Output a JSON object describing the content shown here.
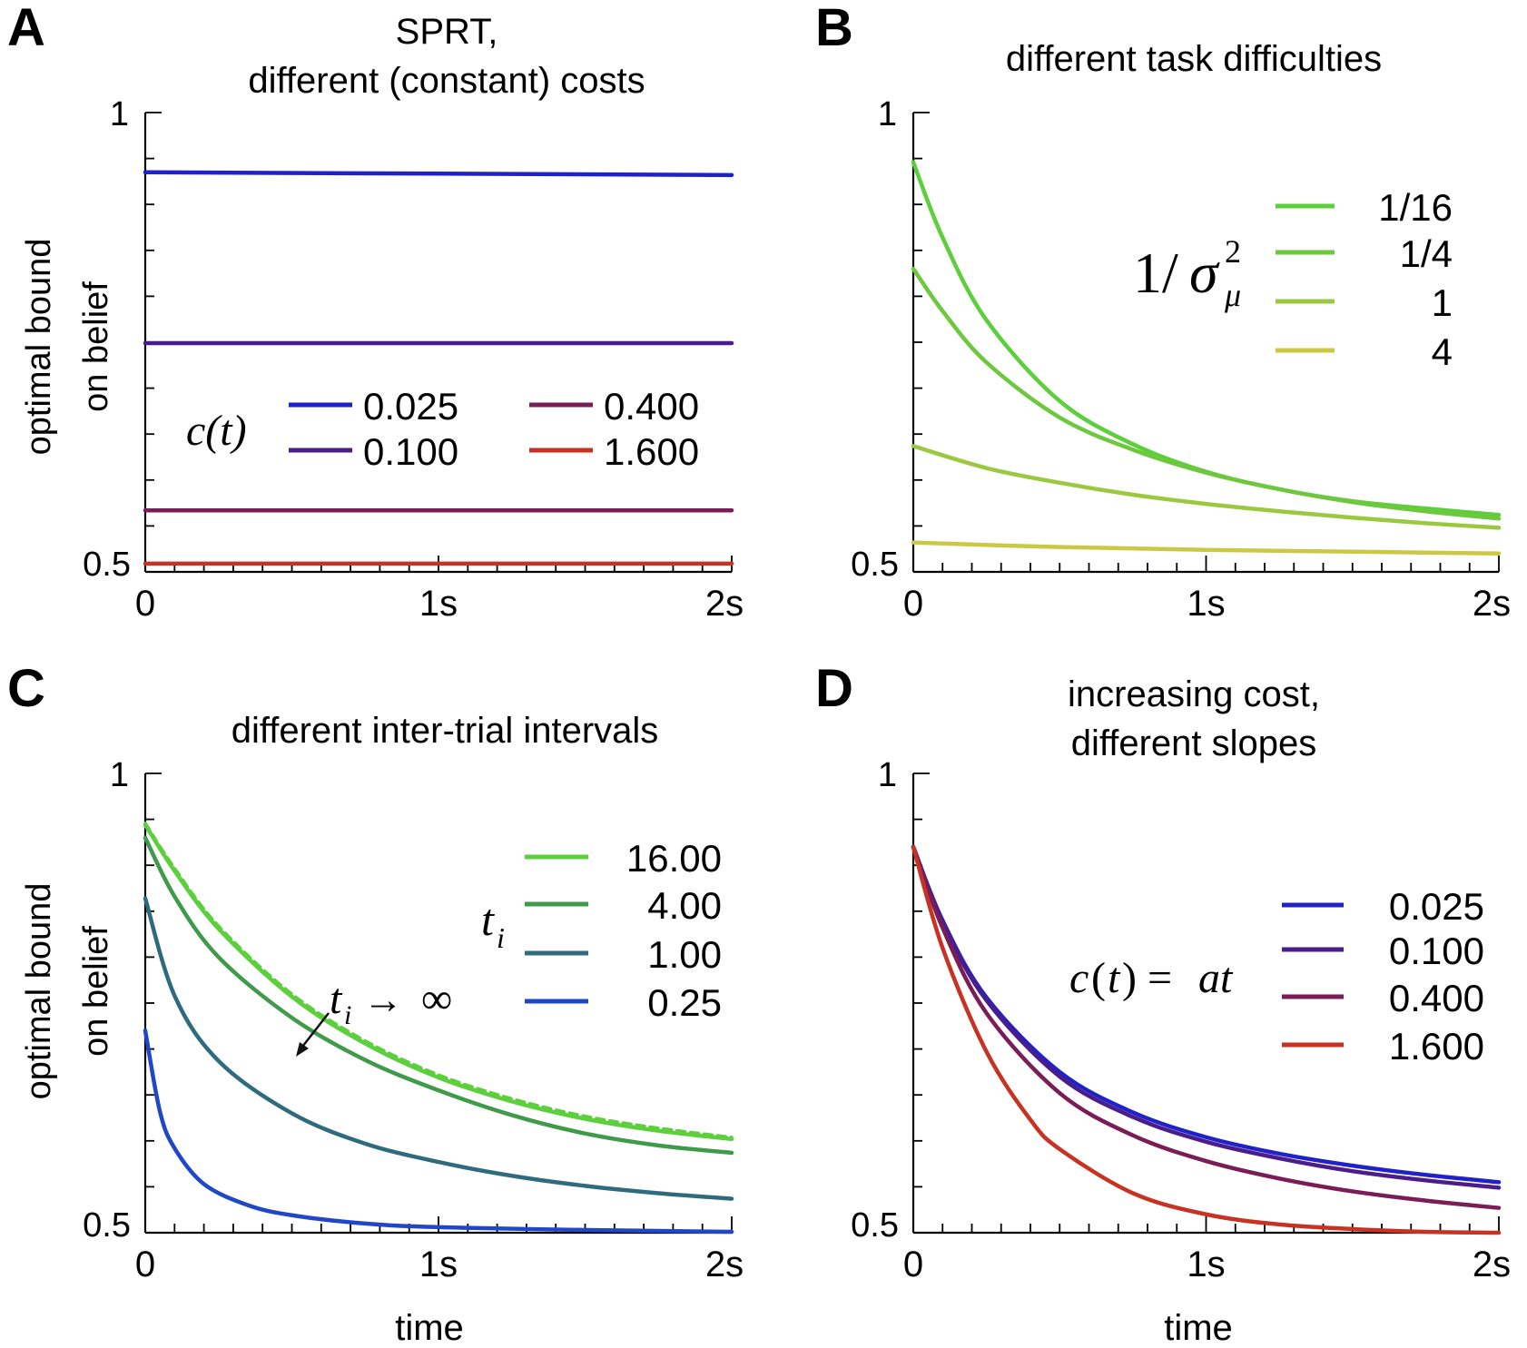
{
  "shared": {
    "ylabel_line1": "optimal bound",
    "ylabel_line2": "on belief",
    "xlabel": "time",
    "xticks": [
      "0",
      "1s",
      "2s"
    ],
    "yticks": [
      "1",
      "0.5"
    ]
  },
  "chart_data": [
    {
      "panel": "A",
      "type": "line",
      "title": [
        "SPRT,",
        "different (constant) costs"
      ],
      "legend_title": "c(t)",
      "xlim": [
        0,
        2
      ],
      "ylim": [
        0.5,
        1
      ],
      "xticks": [
        "0",
        "1s",
        "2s"
      ],
      "yticks": [
        "1",
        "0.5"
      ],
      "ylabel": "optimal bound on belief",
      "xlabel": "",
      "series": [
        {
          "name": "0.025",
          "color": "#1f22c8",
          "x": [
            0,
            2
          ],
          "y": [
            0.935,
            0.932
          ]
        },
        {
          "name": "0.100",
          "color": "#4a1c8c",
          "x": [
            0,
            2
          ],
          "y": [
            0.749,
            0.749
          ]
        },
        {
          "name": "0.400",
          "color": "#7a1c55",
          "x": [
            0,
            2
          ],
          "y": [
            0.567,
            0.567
          ]
        },
        {
          "name": "1.600",
          "color": "#c83223",
          "x": [
            0,
            2
          ],
          "y": [
            0.509,
            0.509
          ]
        }
      ]
    },
    {
      "panel": "B",
      "type": "line",
      "title": [
        "different task difficulties"
      ],
      "legend_title": "1/σ_μ^2",
      "xlim": [
        0,
        2
      ],
      "ylim": [
        0.5,
        1
      ],
      "xticks": [
        "0",
        "1s",
        "2s"
      ],
      "yticks": [
        "1",
        "0.5"
      ],
      "ylabel": "",
      "xlabel": "",
      "series": [
        {
          "name": "1/16",
          "color": "#5ccf3c",
          "x": [
            0,
            0.1,
            0.25,
            0.5,
            0.75,
            1.0,
            1.25,
            1.5,
            1.75,
            2.0
          ],
          "y": [
            0.946,
            0.864,
            0.774,
            0.686,
            0.639,
            0.609,
            0.59,
            0.577,
            0.569,
            0.562
          ]
        },
        {
          "name": "1/4",
          "color": "#6ec83e",
          "x": [
            0,
            0.1,
            0.25,
            0.5,
            0.75,
            1.0,
            1.25,
            1.5,
            1.75,
            2.0
          ],
          "y": [
            0.83,
            0.784,
            0.728,
            0.668,
            0.633,
            0.608,
            0.59,
            0.576,
            0.566,
            0.558
          ]
        },
        {
          "name": "1",
          "color": "#9ac83e",
          "x": [
            0,
            0.25,
            0.5,
            0.75,
            1.0,
            1.25,
            1.5,
            1.75,
            2.0
          ],
          "y": [
            0.637,
            0.613,
            0.597,
            0.584,
            0.574,
            0.566,
            0.559,
            0.553,
            0.548
          ]
        },
        {
          "name": "4",
          "color": "#cbc844",
          "x": [
            0,
            0.5,
            1.0,
            1.5,
            2.0
          ],
          "y": [
            0.532,
            0.527,
            0.524,
            0.522,
            0.52
          ]
        }
      ]
    },
    {
      "panel": "C",
      "type": "line",
      "title": [
        "different inter-trial intervals"
      ],
      "legend_title": "t_i",
      "annotation": "t_i → ∞",
      "xlim": [
        0,
        2
      ],
      "ylim": [
        0.5,
        1
      ],
      "xticks": [
        "0",
        "1s",
        "2s"
      ],
      "yticks": [
        "1",
        "0.5"
      ],
      "ylabel": "optimal bound on belief",
      "xlabel": "time",
      "series": [
        {
          "name": "16.00",
          "color": "#5ccf3c",
          "x": [
            0,
            0.1,
            0.25,
            0.5,
            0.75,
            1.0,
            1.25,
            1.5,
            1.75,
            2.0
          ],
          "y": [
            0.944,
            0.894,
            0.831,
            0.757,
            0.706,
            0.669,
            0.643,
            0.624,
            0.611,
            0.602
          ]
        },
        {
          "name": "4.00",
          "color": "#3f9a4a",
          "x": [
            0,
            0.1,
            0.25,
            0.5,
            0.75,
            1.0,
            1.25,
            1.5,
            1.75,
            2.0
          ],
          "y": [
            0.93,
            0.866,
            0.8,
            0.734,
            0.688,
            0.655,
            0.628,
            0.608,
            0.595,
            0.587
          ]
        },
        {
          "name": "1.00",
          "color": "#2f6b7e",
          "x": [
            0,
            0.1,
            0.25,
            0.5,
            0.75,
            1.0,
            1.25,
            1.5,
            1.75,
            2.0
          ],
          "y": [
            0.864,
            0.758,
            0.687,
            0.63,
            0.597,
            0.577,
            0.562,
            0.551,
            0.543,
            0.537
          ]
        },
        {
          "name": "0.25",
          "color": "#1f47c8",
          "x": [
            0,
            0.05,
            0.1,
            0.2,
            0.35,
            0.5,
            0.75,
            1.0,
            1.5,
            2.0
          ],
          "y": [
            0.72,
            0.632,
            0.592,
            0.553,
            0.53,
            0.519,
            0.51,
            0.506,
            0.503,
            0.501
          ]
        },
        {
          "name": "t_i → ∞",
          "color": "#5ccf3c",
          "dashed": true,
          "x": [
            0,
            0.1,
            0.25,
            0.5,
            0.75,
            1.0,
            1.25,
            1.5,
            1.75,
            2.0
          ],
          "y": [
            0.946,
            0.897,
            0.834,
            0.76,
            0.709,
            0.672,
            0.646,
            0.627,
            0.614,
            0.604
          ]
        }
      ]
    },
    {
      "panel": "D",
      "type": "line",
      "title": [
        "increasing cost,",
        "different slopes"
      ],
      "legend_title": "c(t) = at",
      "xlim": [
        0,
        2
      ],
      "ylim": [
        0.5,
        1
      ],
      "xticks": [
        "0",
        "1s",
        "2s"
      ],
      "yticks": [
        "1",
        "0.5"
      ],
      "ylabel": "",
      "xlabel": "time",
      "series": [
        {
          "name": "0.025",
          "color": "#1f22c8",
          "x": [
            0,
            0.1,
            0.25,
            0.5,
            0.75,
            1.0,
            1.25,
            1.5,
            1.75,
            2.0
          ],
          "y": [
            0.92,
            0.84,
            0.756,
            0.675,
            0.631,
            0.604,
            0.586,
            0.573,
            0.563,
            0.555
          ]
        },
        {
          "name": "0.100",
          "color": "#4a1c8c",
          "x": [
            0,
            0.1,
            0.25,
            0.5,
            0.75,
            1.0,
            1.25,
            1.5,
            1.75,
            2.0
          ],
          "y": [
            0.92,
            0.838,
            0.753,
            0.67,
            0.626,
            0.599,
            0.581,
            0.567,
            0.557,
            0.549
          ]
        },
        {
          "name": "0.400",
          "color": "#7a1c55",
          "x": [
            0,
            0.1,
            0.25,
            0.5,
            0.75,
            1.0,
            1.25,
            1.5,
            1.75,
            2.0
          ],
          "y": [
            0.92,
            0.832,
            0.739,
            0.652,
            0.606,
            0.578,
            0.559,
            0.545,
            0.535,
            0.527
          ]
        },
        {
          "name": "1.600",
          "color": "#c83223",
          "x": [
            0,
            0.1,
            0.25,
            0.4,
            0.5,
            0.75,
            1.0,
            1.25,
            1.5,
            1.75,
            2.0
          ],
          "y": [
            0.92,
            0.81,
            0.697,
            0.623,
            0.591,
            0.543,
            0.52,
            0.509,
            0.504,
            0.501,
            0.5
          ]
        }
      ]
    }
  ]
}
